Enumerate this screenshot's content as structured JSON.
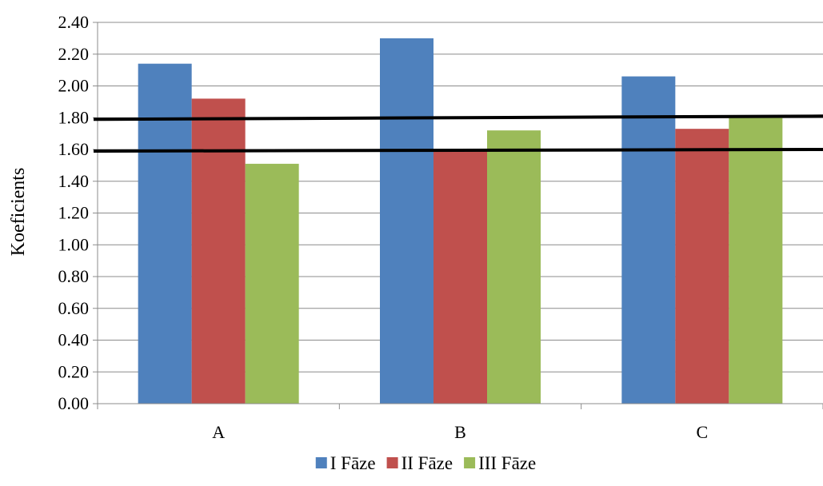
{
  "chart_data": {
    "type": "bar",
    "title": "",
    "xlabel": "",
    "ylabel": "Koeficients",
    "categories": [
      "A",
      "B",
      "C"
    ],
    "series": [
      {
        "name": "I Fāze",
        "values": [
          2.14,
          2.3,
          2.06
        ],
        "color": "#4F81BD"
      },
      {
        "name": "II Fāze",
        "values": [
          1.92,
          1.6,
          1.73
        ],
        "color": "#C0504D"
      },
      {
        "name": "III Fāze",
        "values": [
          1.51,
          1.72,
          1.8
        ],
        "color": "#9BBB59"
      }
    ],
    "ylim": [
      0,
      2.4
    ],
    "ytick_step": 0.2,
    "yticks": [
      "0.00",
      "0.20",
      "0.40",
      "0.60",
      "0.80",
      "1.00",
      "1.20",
      "1.40",
      "1.60",
      "1.80",
      "2.00",
      "2.20",
      "2.40"
    ],
    "grid": true,
    "legend_position": "bottom",
    "reference_lines": [
      {
        "y_start": 1.79,
        "y_end": 1.81,
        "color": "#000000"
      },
      {
        "y_start": 1.59,
        "y_end": 1.6,
        "color": "#000000"
      }
    ]
  }
}
